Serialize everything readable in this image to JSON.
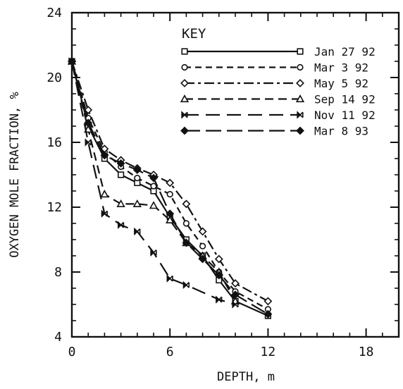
{
  "chart_data": {
    "type": "line",
    "title": "",
    "xlabel": "DEPTH, m",
    "ylabel": "OXYGEN MOLE FRACTION, %",
    "xlim": [
      0,
      20
    ],
    "ylim": [
      4,
      24
    ],
    "x_ticks": [
      0,
      6,
      12,
      18
    ],
    "y_ticks": [
      4,
      8,
      12,
      16,
      20,
      24
    ],
    "grid": false,
    "legend": {
      "title": "KEY",
      "placement": "top-right"
    },
    "series": [
      {
        "name": "Jan 27 92",
        "marker": "square",
        "dash": "solid",
        "x": [
          0,
          1,
          2,
          3,
          4,
          5,
          6,
          7,
          8,
          9,
          10,
          12
        ],
        "y": [
          21.0,
          17.0,
          15.0,
          14.0,
          13.5,
          13.0,
          11.4,
          10.0,
          9.0,
          7.5,
          6.2,
          5.3
        ]
      },
      {
        "name": "Mar 3 92",
        "marker": "circle",
        "dash": "short",
        "x": [
          0,
          1,
          2,
          3,
          4,
          5,
          6,
          7,
          8,
          9,
          10,
          12
        ],
        "y": [
          21.0,
          17.5,
          15.4,
          14.5,
          13.8,
          13.3,
          12.8,
          11.0,
          9.6,
          8.0,
          6.8,
          5.7
        ]
      },
      {
        "name": "May 5 92",
        "marker": "diamond",
        "dash": "dashdot",
        "x": [
          0,
          1,
          2,
          3,
          4,
          5,
          6,
          7,
          8,
          9,
          10,
          12
        ],
        "y": [
          21.0,
          18.0,
          15.6,
          14.9,
          14.4,
          14.0,
          13.5,
          12.2,
          10.5,
          8.8,
          7.3,
          6.2
        ]
      },
      {
        "name": "Sep 14 92",
        "marker": "triangle",
        "dash": "medium",
        "x": [
          0,
          1,
          2,
          3,
          4,
          5,
          6,
          7,
          8,
          9,
          10
        ],
        "y": [
          21.0,
          16.8,
          12.8,
          12.2,
          12.2,
          12.1,
          11.2,
          9.8,
          9.0,
          8.0,
          6.2
        ]
      },
      {
        "name": "Nov 11 92",
        "marker": "bowtie",
        "dash": "long",
        "x": [
          0,
          1,
          2,
          3,
          4,
          5,
          6,
          7,
          9,
          10
        ],
        "y": [
          21.0,
          16.0,
          11.6,
          10.9,
          10.5,
          9.2,
          7.6,
          7.2,
          6.3,
          6.0
        ]
      },
      {
        "name": "Mar 8 93",
        "marker": "filled-diamond",
        "dash": "longdash",
        "x": [
          0,
          1,
          2,
          3,
          4,
          5,
          6,
          7,
          8,
          9,
          10,
          12
        ],
        "y": [
          21.0,
          17.2,
          15.2,
          14.7,
          14.3,
          13.8,
          11.6,
          9.8,
          8.8,
          7.8,
          6.6,
          5.4
        ]
      }
    ]
  }
}
